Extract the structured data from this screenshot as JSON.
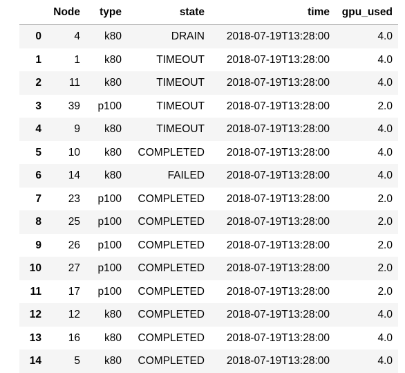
{
  "table": {
    "columns": [
      "",
      "Node",
      "type",
      "state",
      "time",
      "gpu_used"
    ],
    "rows": [
      {
        "index": "0",
        "node": "4",
        "type": "k80",
        "state": "DRAIN",
        "time": "2018-07-19T13:28:00",
        "gpu_used": "4.0"
      },
      {
        "index": "1",
        "node": "1",
        "type": "k80",
        "state": "TIMEOUT",
        "time": "2018-07-19T13:28:00",
        "gpu_used": "4.0"
      },
      {
        "index": "2",
        "node": "11",
        "type": "k80",
        "state": "TIMEOUT",
        "time": "2018-07-19T13:28:00",
        "gpu_used": "4.0"
      },
      {
        "index": "3",
        "node": "39",
        "type": "p100",
        "state": "TIMEOUT",
        "time": "2018-07-19T13:28:00",
        "gpu_used": "2.0"
      },
      {
        "index": "4",
        "node": "9",
        "type": "k80",
        "state": "TIMEOUT",
        "time": "2018-07-19T13:28:00",
        "gpu_used": "4.0"
      },
      {
        "index": "5",
        "node": "10",
        "type": "k80",
        "state": "COMPLETED",
        "time": "2018-07-19T13:28:00",
        "gpu_used": "4.0"
      },
      {
        "index": "6",
        "node": "14",
        "type": "k80",
        "state": "FAILED",
        "time": "2018-07-19T13:28:00",
        "gpu_used": "4.0"
      },
      {
        "index": "7",
        "node": "23",
        "type": "p100",
        "state": "COMPLETED",
        "time": "2018-07-19T13:28:00",
        "gpu_used": "2.0"
      },
      {
        "index": "8",
        "node": "25",
        "type": "p100",
        "state": "COMPLETED",
        "time": "2018-07-19T13:28:00",
        "gpu_used": "2.0"
      },
      {
        "index": "9",
        "node": "26",
        "type": "p100",
        "state": "COMPLETED",
        "time": "2018-07-19T13:28:00",
        "gpu_used": "2.0"
      },
      {
        "index": "10",
        "node": "27",
        "type": "p100",
        "state": "COMPLETED",
        "time": "2018-07-19T13:28:00",
        "gpu_used": "2.0"
      },
      {
        "index": "11",
        "node": "17",
        "type": "p100",
        "state": "COMPLETED",
        "time": "2018-07-19T13:28:00",
        "gpu_used": "2.0"
      },
      {
        "index": "12",
        "node": "12",
        "type": "k80",
        "state": "COMPLETED",
        "time": "2018-07-19T13:28:00",
        "gpu_used": "4.0"
      },
      {
        "index": "13",
        "node": "16",
        "type": "k80",
        "state": "COMPLETED",
        "time": "2018-07-19T13:28:00",
        "gpu_used": "4.0"
      },
      {
        "index": "14",
        "node": "5",
        "type": "k80",
        "state": "COMPLETED",
        "time": "2018-07-19T13:28:00",
        "gpu_used": "4.0"
      }
    ]
  },
  "colors": {
    "stripe": "#f5f5f5",
    "header_border": "#bcbcbc",
    "text": "#000000"
  }
}
